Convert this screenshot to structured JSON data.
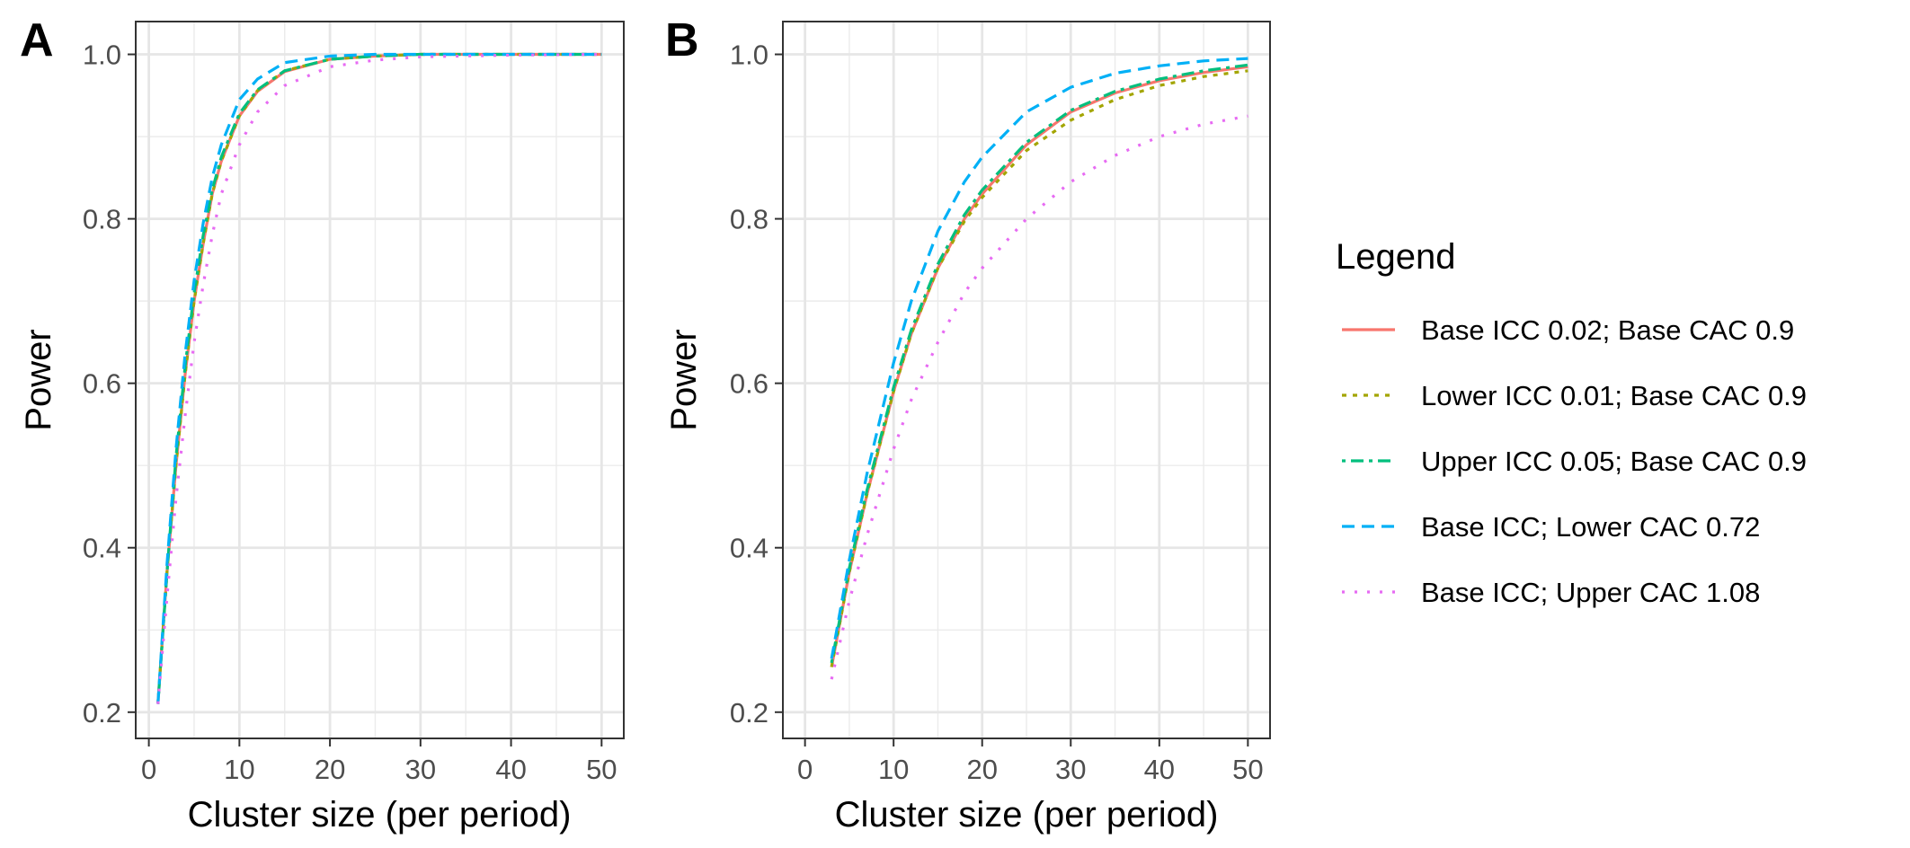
{
  "chart_data": [
    {
      "type": "line",
      "panel_label": "A",
      "xlabel": "Cluster size (per period)",
      "ylabel": "Power",
      "xlim": [
        1,
        50
      ],
      "ylim": [
        0.2,
        1.0
      ],
      "x_ticks": [
        0,
        10,
        20,
        30,
        40,
        50
      ],
      "y_ticks": [
        0.2,
        0.4,
        0.6,
        0.8,
        1.0
      ],
      "y_tick_labels": [
        "0.2",
        "0.4",
        "0.6",
        "0.8",
        "1.0"
      ],
      "grid": true,
      "series": [
        {
          "name": "Base ICC 0.02; Base CAC 0.9",
          "x": [
            1,
            2,
            3,
            4,
            5,
            6,
            7,
            8,
            10,
            12,
            15,
            20,
            25,
            30,
            40,
            50
          ],
          "y": [
            0.21,
            0.37,
            0.5,
            0.61,
            0.7,
            0.77,
            0.83,
            0.87,
            0.925,
            0.955,
            0.979,
            0.994,
            0.998,
            1.0,
            1.0,
            1.0
          ]
        },
        {
          "name": "Lower ICC 0.01; Base CAC 0.9",
          "x": [
            1,
            2,
            3,
            4,
            5,
            6,
            7,
            8,
            10,
            12,
            15,
            20,
            25,
            30,
            40,
            50
          ],
          "y": [
            0.21,
            0.37,
            0.5,
            0.61,
            0.7,
            0.77,
            0.83,
            0.87,
            0.925,
            0.956,
            0.98,
            0.994,
            0.998,
            1.0,
            1.0,
            1.0
          ]
        },
        {
          "name": "Upper ICC 0.05; Base CAC 0.9",
          "x": [
            1,
            2,
            3,
            4,
            5,
            6,
            7,
            8,
            10,
            12,
            15,
            20,
            25,
            30,
            40,
            50
          ],
          "y": [
            0.21,
            0.37,
            0.51,
            0.62,
            0.71,
            0.78,
            0.835,
            0.875,
            0.928,
            0.957,
            0.98,
            0.994,
            0.998,
            1.0,
            1.0,
            1.0
          ]
        },
        {
          "name": "Base ICC; Lower CAC 0.72",
          "x": [
            1,
            2,
            3,
            4,
            5,
            6,
            7,
            8,
            10,
            12,
            15,
            20,
            25,
            30,
            40,
            50
          ],
          "y": [
            0.21,
            0.38,
            0.52,
            0.635,
            0.725,
            0.795,
            0.85,
            0.89,
            0.945,
            0.97,
            0.99,
            0.998,
            1.0,
            1.0,
            1.0,
            1.0
          ]
        },
        {
          "name": "Base ICC; Upper CAC 1.08",
          "x": [
            1,
            2,
            3,
            4,
            5,
            6,
            7,
            8,
            10,
            12,
            15,
            20,
            25,
            30,
            40,
            50
          ],
          "y": [
            0.21,
            0.34,
            0.46,
            0.56,
            0.65,
            0.72,
            0.78,
            0.83,
            0.89,
            0.93,
            0.962,
            0.985,
            0.993,
            0.997,
            0.999,
            1.0
          ]
        }
      ]
    },
    {
      "type": "line",
      "panel_label": "B",
      "xlabel": "Cluster size (per period)",
      "ylabel": "Power",
      "xlim": [
        0,
        50
      ],
      "ylim": [
        0.2,
        1.0
      ],
      "x_ticks": [
        0,
        10,
        20,
        30,
        40,
        50
      ],
      "y_ticks": [
        0.2,
        0.4,
        0.6,
        0.8,
        1.0
      ],
      "y_tick_labels": [
        "0.2",
        "0.4",
        "0.6",
        "0.8",
        "1.0"
      ],
      "grid": true,
      "series": [
        {
          "name": "Base ICC 0.02; Base CAC 0.9",
          "x": [
            3,
            5,
            7,
            10,
            12,
            15,
            18,
            20,
            25,
            30,
            35,
            40,
            45,
            50
          ],
          "y": [
            0.255,
            0.37,
            0.465,
            0.59,
            0.66,
            0.74,
            0.8,
            0.83,
            0.89,
            0.93,
            0.953,
            0.968,
            0.978,
            0.985
          ]
        },
        {
          "name": "Lower ICC 0.01; Base CAC 0.9",
          "x": [
            3,
            5,
            7,
            10,
            12,
            15,
            18,
            20,
            25,
            30,
            35,
            40,
            45,
            50
          ],
          "y": [
            0.255,
            0.37,
            0.465,
            0.59,
            0.66,
            0.74,
            0.797,
            0.826,
            0.883,
            0.92,
            0.945,
            0.962,
            0.973,
            0.98
          ]
        },
        {
          "name": "Upper ICC 0.05; Base CAC 0.9",
          "x": [
            3,
            5,
            7,
            10,
            12,
            15,
            18,
            20,
            25,
            30,
            35,
            40,
            45,
            50
          ],
          "y": [
            0.26,
            0.375,
            0.47,
            0.595,
            0.665,
            0.745,
            0.805,
            0.835,
            0.893,
            0.932,
            0.955,
            0.97,
            0.98,
            0.987
          ]
        },
        {
          "name": "Base ICC; Lower CAC 0.72",
          "x": [
            3,
            5,
            7,
            10,
            12,
            15,
            18,
            20,
            25,
            30,
            35,
            40,
            45,
            50
          ],
          "y": [
            0.265,
            0.385,
            0.49,
            0.625,
            0.7,
            0.785,
            0.845,
            0.875,
            0.93,
            0.96,
            0.977,
            0.986,
            0.992,
            0.995
          ]
        },
        {
          "name": "Base ICC; Upper CAC 1.08",
          "x": [
            3,
            5,
            7,
            10,
            12,
            15,
            18,
            20,
            25,
            30,
            35,
            40,
            45,
            50
          ],
          "y": [
            0.24,
            0.335,
            0.415,
            0.52,
            0.58,
            0.65,
            0.71,
            0.74,
            0.8,
            0.845,
            0.877,
            0.9,
            0.915,
            0.925
          ]
        }
      ]
    }
  ],
  "legend": {
    "title": "Legend",
    "entries": [
      {
        "label": "Base ICC 0.02; Base CAC 0.9",
        "color": "#F8766D",
        "dash": "solid"
      },
      {
        "label": "Lower ICC 0.01; Base CAC 0.9",
        "color": "#A3A500",
        "dash": "dotted"
      },
      {
        "label": "Upper ICC 0.05; Base CAC 0.9",
        "color": "#00BF7D",
        "dash": "dotdash"
      },
      {
        "label": "Base ICC; Lower CAC 0.72",
        "color": "#00B0F6",
        "dash": "dashed"
      },
      {
        "label": "Base ICC; Upper CAC 1.08",
        "color": "#E76BF3",
        "dash": "dotted-wide"
      }
    ]
  }
}
